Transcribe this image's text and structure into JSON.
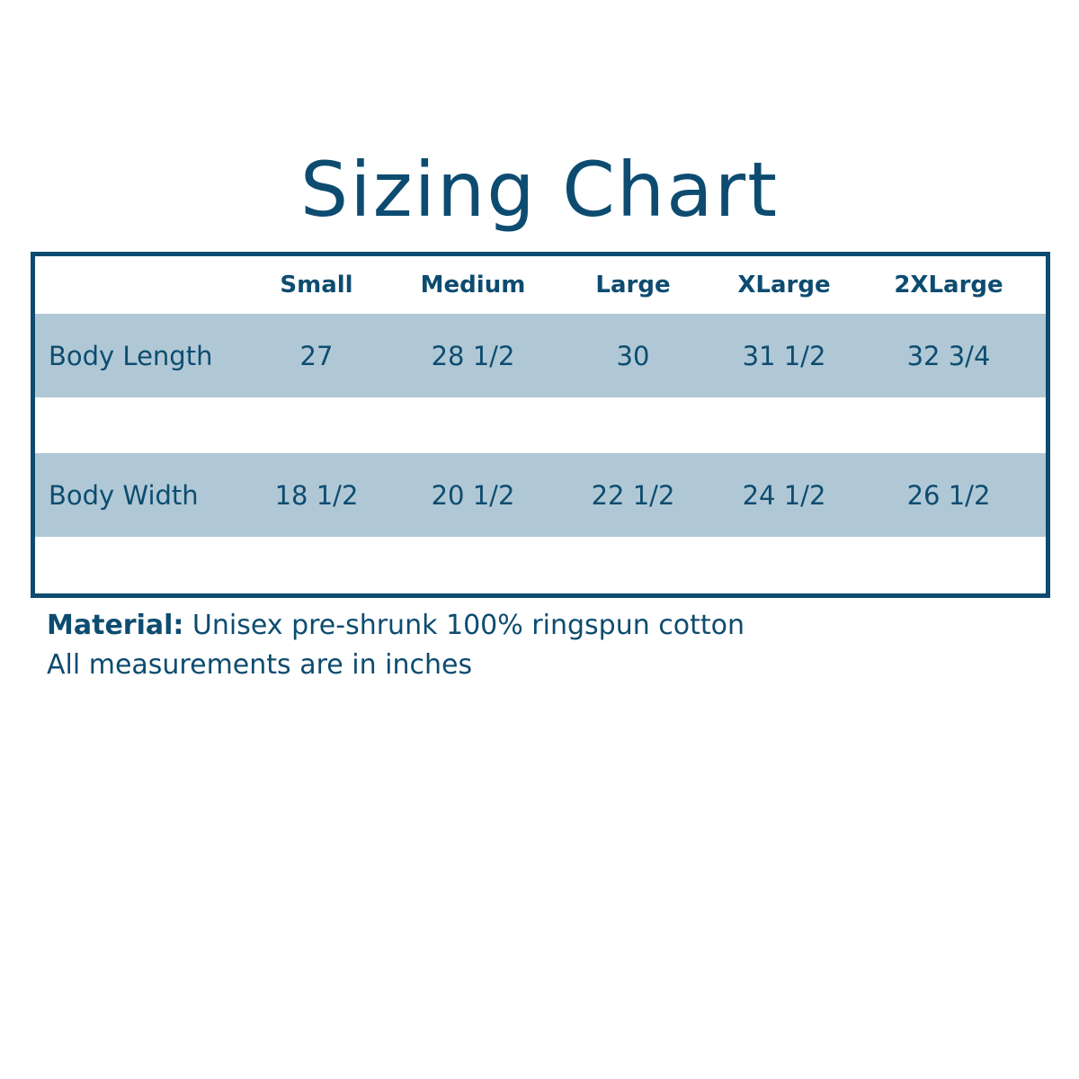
{
  "title": "Sizing Chart",
  "table": {
    "headers": [
      "Small",
      "Medium",
      "Large",
      "XLarge",
      "2XLarge"
    ],
    "rows": [
      {
        "label": "Body Length",
        "values": [
          "27",
          "28 1/2",
          "30",
          "31 1/2",
          "32 3/4"
        ]
      },
      {
        "label": "Body Width",
        "values": [
          "18 1/2",
          "20 1/2",
          "22 1/2",
          "24 1/2",
          "26 1/2"
        ]
      }
    ]
  },
  "footer": {
    "material_label": "Material:",
    "material_text": " Unisex pre-shrunk 100% ringspun cotton",
    "note": "All measurements are in inches"
  },
  "colors": {
    "primary": "#0d4c70",
    "band": "#b0c8d5"
  }
}
